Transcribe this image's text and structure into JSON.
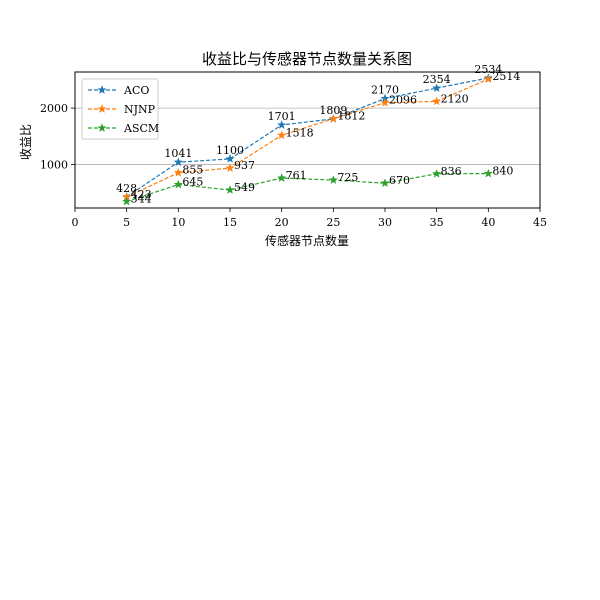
{
  "chart_data": {
    "type": "line",
    "title": "收益比与传感器节点数量关系图",
    "xlabel": "传感器节点数量",
    "ylabel": "收益比",
    "xlim": [
      0,
      45
    ],
    "ylim": [
      230,
      2640
    ],
    "xticks": [
      0,
      5,
      10,
      15,
      20,
      25,
      30,
      35,
      40,
      45
    ],
    "yticks": [
      1000,
      2000
    ],
    "grid": "horizontal",
    "legend_position": "top-left",
    "x": [
      5,
      10,
      15,
      20,
      25,
      30,
      35,
      40
    ],
    "series": [
      {
        "name": "ACO",
        "color": "#1f77b4",
        "marker": "star",
        "linestyle": "dashed",
        "values": [
          428,
          1041,
          1100,
          1701,
          1809,
          2170,
          2354,
          2534
        ]
      },
      {
        "name": "NJNP",
        "color": "#ff7f0e",
        "marker": "star",
        "linestyle": "dashed",
        "values": [
          423,
          855,
          937,
          1518,
          1812,
          2096,
          2120,
          2514
        ]
      },
      {
        "name": "ASCM",
        "color": "#2ca02c",
        "marker": "star",
        "linestyle": "dashed",
        "values": [
          344,
          645,
          549,
          761,
          725,
          670,
          836,
          840
        ]
      }
    ]
  }
}
